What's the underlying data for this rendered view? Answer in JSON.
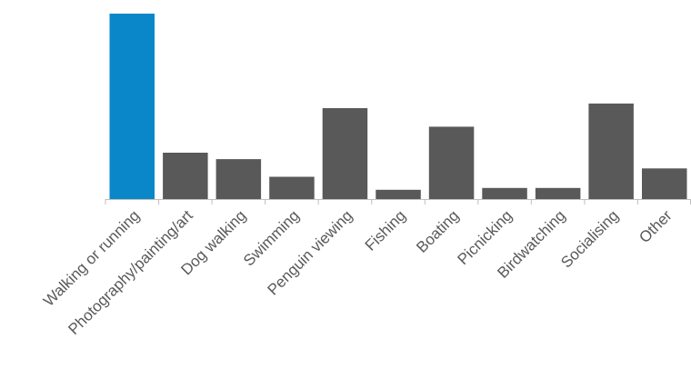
{
  "chart_data": {
    "type": "bar",
    "categories": [
      "Walking or running",
      "Photography/painting/art",
      "Dog walking",
      "Swimming",
      "Penguin viewing",
      "Fishing",
      "Boating",
      "Picnicking",
      "Birdwatching",
      "Socialising",
      "Other"
    ],
    "values": [
      100,
      25,
      21.5,
      12,
      49,
      5,
      39,
      6,
      6,
      51.5,
      16.5
    ],
    "title": "",
    "xlabel": "",
    "ylabel": "",
    "ylim": [
      0,
      100
    ],
    "grid": false,
    "legend": "none",
    "colors": {
      "highlight": "#0A87C9",
      "default": "#595959",
      "axis": "#BFBFBF",
      "label": "#595959"
    },
    "highlight_index": 0
  }
}
